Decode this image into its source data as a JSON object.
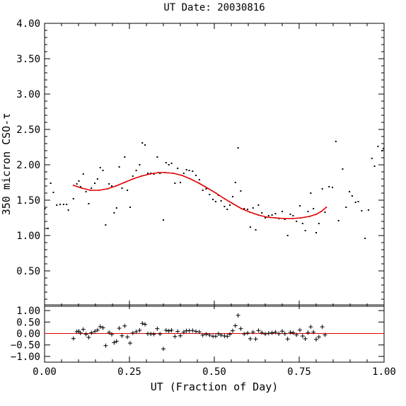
{
  "title": "UT Date: 20030816",
  "xlabel": "UT (Fraction of Day)",
  "ylabel": "350 micron CSO-τ",
  "colors": {
    "fit": "#e00000",
    "zero_line": "#e00000",
    "points": "#000000"
  },
  "chart_data": [
    {
      "type": "scatter",
      "name": "tau",
      "ylabel": "350 micron CSO-τ",
      "xlim": [
        0.0,
        1.0
      ],
      "ylim": [
        0.0,
        4.0
      ],
      "yticks": [
        "0.50",
        "1.00",
        "1.50",
        "2.00",
        "2.50",
        "3.00",
        "3.50",
        "4.00"
      ],
      "points": [
        [
          0.001,
          1.38
        ],
        [
          0.01,
          1.1
        ],
        [
          0.018,
          1.74
        ],
        [
          0.026,
          1.61
        ],
        [
          0.036,
          1.43
        ],
        [
          0.046,
          1.44
        ],
        [
          0.056,
          1.44
        ],
        [
          0.065,
          1.44
        ],
        [
          0.07,
          1.36
        ],
        [
          0.085,
          1.52
        ],
        [
          0.095,
          1.73
        ],
        [
          0.101,
          1.77
        ],
        [
          0.106,
          1.69
        ],
        [
          0.114,
          1.87
        ],
        [
          0.122,
          1.62
        ],
        [
          0.13,
          1.45
        ],
        [
          0.138,
          1.67
        ],
        [
          0.148,
          1.74
        ],
        [
          0.156,
          1.8
        ],
        [
          0.164,
          1.96
        ],
        [
          0.172,
          1.92
        ],
        [
          0.18,
          1.15
        ],
        [
          0.19,
          1.73
        ],
        [
          0.198,
          1.7
        ],
        [
          0.205,
          1.32
        ],
        [
          0.212,
          1.39
        ],
        [
          0.22,
          1.97
        ],
        [
          0.228,
          1.67
        ],
        [
          0.236,
          2.11
        ],
        [
          0.244,
          1.64
        ],
        [
          0.252,
          1.4
        ],
        [
          0.26,
          1.84
        ],
        [
          0.27,
          1.92
        ],
        [
          0.28,
          2.0
        ],
        [
          0.288,
          2.31
        ],
        [
          0.296,
          2.28
        ],
        [
          0.304,
          1.88
        ],
        [
          0.313,
          1.88
        ],
        [
          0.322,
          1.87
        ],
        [
          0.332,
          2.11
        ],
        [
          0.34,
          1.88
        ],
        [
          0.35,
          1.22
        ],
        [
          0.358,
          2.03
        ],
        [
          0.366,
          2.0
        ],
        [
          0.374,
          2.02
        ],
        [
          0.384,
          1.74
        ],
        [
          0.392,
          1.95
        ],
        [
          0.4,
          1.75
        ],
        [
          0.41,
          1.88
        ],
        [
          0.418,
          1.93
        ],
        [
          0.426,
          1.92
        ],
        [
          0.436,
          1.91
        ],
        [
          0.446,
          1.85
        ],
        [
          0.456,
          1.79
        ],
        [
          0.466,
          1.64
        ],
        [
          0.476,
          1.66
        ],
        [
          0.486,
          1.58
        ],
        [
          0.496,
          1.51
        ],
        [
          0.504,
          1.48
        ],
        [
          0.512,
          1.57
        ],
        [
          0.52,
          1.49
        ],
        [
          0.53,
          1.41
        ],
        [
          0.538,
          1.37
        ],
        [
          0.546,
          1.43
        ],
        [
          0.554,
          1.55
        ],
        [
          0.562,
          1.75
        ],
        [
          0.57,
          2.24
        ],
        [
          0.578,
          1.63
        ],
        [
          0.588,
          1.38
        ],
        [
          0.598,
          1.37
        ],
        [
          0.606,
          1.12
        ],
        [
          0.614,
          1.39
        ],
        [
          0.622,
          1.08
        ],
        [
          0.63,
          1.43
        ],
        [
          0.64,
          1.32
        ],
        [
          0.65,
          1.25
        ],
        [
          0.66,
          1.28
        ],
        [
          0.67,
          1.29
        ],
        [
          0.68,
          1.31
        ],
        [
          0.69,
          1.24
        ],
        [
          0.7,
          1.34
        ],
        [
          0.708,
          1.23
        ],
        [
          0.716,
          1.0
        ],
        [
          0.724,
          1.3
        ],
        [
          0.732,
          1.28
        ],
        [
          0.742,
          1.2
        ],
        [
          0.752,
          1.42
        ],
        [
          0.76,
          1.17
        ],
        [
          0.768,
          1.07
        ],
        [
          0.776,
          1.34
        ],
        [
          0.784,
          1.6
        ],
        [
          0.792,
          1.38
        ],
        [
          0.8,
          1.04
        ],
        [
          0.808,
          1.17
        ],
        [
          0.818,
          1.66
        ],
        [
          0.826,
          1.33
        ],
        [
          0.838,
          1.69
        ],
        [
          0.848,
          1.68
        ],
        [
          0.858,
          2.33
        ],
        [
          0.866,
          1.21
        ],
        [
          0.878,
          1.94
        ],
        [
          0.888,
          1.4
        ],
        [
          0.898,
          1.62
        ],
        [
          0.906,
          1.56
        ],
        [
          0.916,
          1.47
        ],
        [
          0.924,
          1.48
        ],
        [
          0.934,
          1.35
        ],
        [
          0.944,
          0.96
        ],
        [
          0.954,
          1.36
        ],
        [
          0.964,
          2.09
        ],
        [
          0.972,
          1.98
        ],
        [
          0.982,
          2.26
        ],
        [
          0.994,
          2.2
        ],
        [
          0.998,
          2.23
        ]
      ],
      "fit": {
        "x": [
          0.085,
          0.11,
          0.135,
          0.16,
          0.185,
          0.21,
          0.235,
          0.26,
          0.285,
          0.31,
          0.335,
          0.355,
          0.38,
          0.405,
          0.43,
          0.455,
          0.48,
          0.505,
          0.53,
          0.555,
          0.58,
          0.605,
          0.63,
          0.655,
          0.68,
          0.705,
          0.73,
          0.755,
          0.78,
          0.8,
          0.815,
          0.83
        ],
        "y": [
          1.71,
          1.67,
          1.64,
          1.64,
          1.66,
          1.7,
          1.75,
          1.8,
          1.84,
          1.87,
          1.89,
          1.89,
          1.88,
          1.85,
          1.8,
          1.74,
          1.67,
          1.6,
          1.52,
          1.45,
          1.38,
          1.33,
          1.29,
          1.26,
          1.25,
          1.24,
          1.24,
          1.25,
          1.27,
          1.3,
          1.34,
          1.4
        ]
      }
    },
    {
      "type": "scatter",
      "name": "residuals",
      "xlim": [
        0.0,
        1.0
      ],
      "ylim": [
        -1.25,
        1.25
      ],
      "yticks": [
        "1.00",
        "0.50",
        "0.00",
        "−0.50",
        "−1.00"
      ],
      "xticks": [
        "0.00",
        "0.25",
        "0.50",
        "0.75",
        "1.00"
      ],
      "zero_line": 0.0,
      "points": [
        [
          0.085,
          -0.22
        ],
        [
          0.095,
          0.08
        ],
        [
          0.101,
          0.1
        ],
        [
          0.106,
          0.02
        ],
        [
          0.114,
          0.18
        ],
        [
          0.122,
          -0.03
        ],
        [
          0.13,
          -0.17
        ],
        [
          0.138,
          0.03
        ],
        [
          0.148,
          0.09
        ],
        [
          0.156,
          0.15
        ],
        [
          0.164,
          0.3
        ],
        [
          0.172,
          0.25
        ],
        [
          0.18,
          -0.53
        ],
        [
          0.19,
          0.05
        ],
        [
          0.198,
          -0.04
        ],
        [
          0.205,
          -0.4
        ],
        [
          0.212,
          -0.34
        ],
        [
          0.22,
          0.23
        ],
        [
          0.228,
          -0.1
        ],
        [
          0.236,
          0.33
        ],
        [
          0.244,
          -0.15
        ],
        [
          0.252,
          -0.42
        ],
        [
          0.26,
          0.02
        ],
        [
          0.27,
          0.08
        ],
        [
          0.28,
          0.14
        ],
        [
          0.288,
          0.44
        ],
        [
          0.296,
          0.4
        ],
        [
          0.304,
          -0.01
        ],
        [
          0.313,
          -0.02
        ],
        [
          0.322,
          -0.03
        ],
        [
          0.332,
          0.21
        ],
        [
          0.34,
          -0.02
        ],
        [
          0.35,
          -0.67
        ],
        [
          0.358,
          0.14
        ],
        [
          0.366,
          0.11
        ],
        [
          0.374,
          0.14
        ],
        [
          0.384,
          -0.13
        ],
        [
          0.392,
          0.09
        ],
        [
          0.4,
          -0.1
        ],
        [
          0.41,
          0.06
        ],
        [
          0.418,
          0.12
        ],
        [
          0.426,
          0.12
        ],
        [
          0.436,
          0.13
        ],
        [
          0.446,
          0.09
        ],
        [
          0.456,
          0.07
        ],
        [
          0.466,
          -0.07
        ],
        [
          0.476,
          -0.03
        ],
        [
          0.486,
          -0.07
        ],
        [
          0.496,
          -0.12
        ],
        [
          0.504,
          -0.12
        ],
        [
          0.512,
          -0.01
        ],
        [
          0.52,
          -0.07
        ],
        [
          0.53,
          -0.11
        ],
        [
          0.538,
          -0.12
        ],
        [
          0.546,
          -0.03
        ],
        [
          0.554,
          0.12
        ],
        [
          0.562,
          0.34
        ],
        [
          0.57,
          0.79
        ],
        [
          0.578,
          0.21
        ],
        [
          0.588,
          -0.02
        ],
        [
          0.598,
          0.02
        ],
        [
          0.606,
          -0.23
        ],
        [
          0.614,
          0.06
        ],
        [
          0.622,
          -0.24
        ],
        [
          0.63,
          0.13
        ],
        [
          0.64,
          0.04
        ],
        [
          0.65,
          -0.02
        ],
        [
          0.66,
          0.01
        ],
        [
          0.67,
          0.03
        ],
        [
          0.68,
          0.06
        ],
        [
          0.69,
          -0.01
        ],
        [
          0.7,
          0.1
        ],
        [
          0.708,
          -0.01
        ],
        [
          0.716,
          -0.24
        ],
        [
          0.724,
          0.05
        ],
        [
          0.732,
          0.03
        ],
        [
          0.742,
          -0.06
        ],
        [
          0.752,
          0.15
        ],
        [
          0.76,
          -0.11
        ],
        [
          0.768,
          -0.23
        ],
        [
          0.776,
          0.04
        ],
        [
          0.784,
          0.29
        ],
        [
          0.792,
          0.06
        ],
        [
          0.8,
          -0.26
        ],
        [
          0.808,
          -0.15
        ],
        [
          0.818,
          0.29
        ],
        [
          0.826,
          -0.06
        ]
      ]
    }
  ]
}
